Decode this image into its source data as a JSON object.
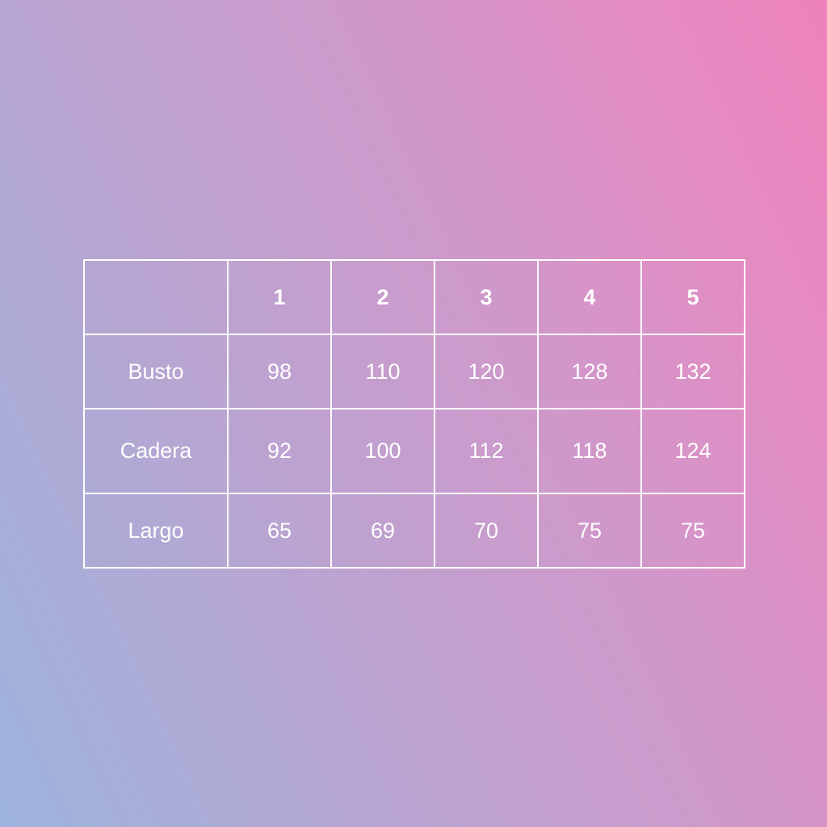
{
  "size_table": {
    "header": [
      "",
      "1",
      "2",
      "3",
      "4",
      "5"
    ],
    "rows": [
      {
        "label": "Busto",
        "values": [
          "98",
          "110",
          "120",
          "128",
          "132"
        ]
      },
      {
        "label": "Cadera",
        "values": [
          "92",
          "100",
          "112",
          "118",
          "124"
        ]
      },
      {
        "label": "Largo",
        "values": [
          "65",
          "69",
          "70",
          "75",
          "75"
        ]
      }
    ]
  },
  "colors": {
    "gradient_left": "#9cb3dd",
    "gradient_right": "#ee82bc",
    "lines_text": "#ffffff"
  }
}
